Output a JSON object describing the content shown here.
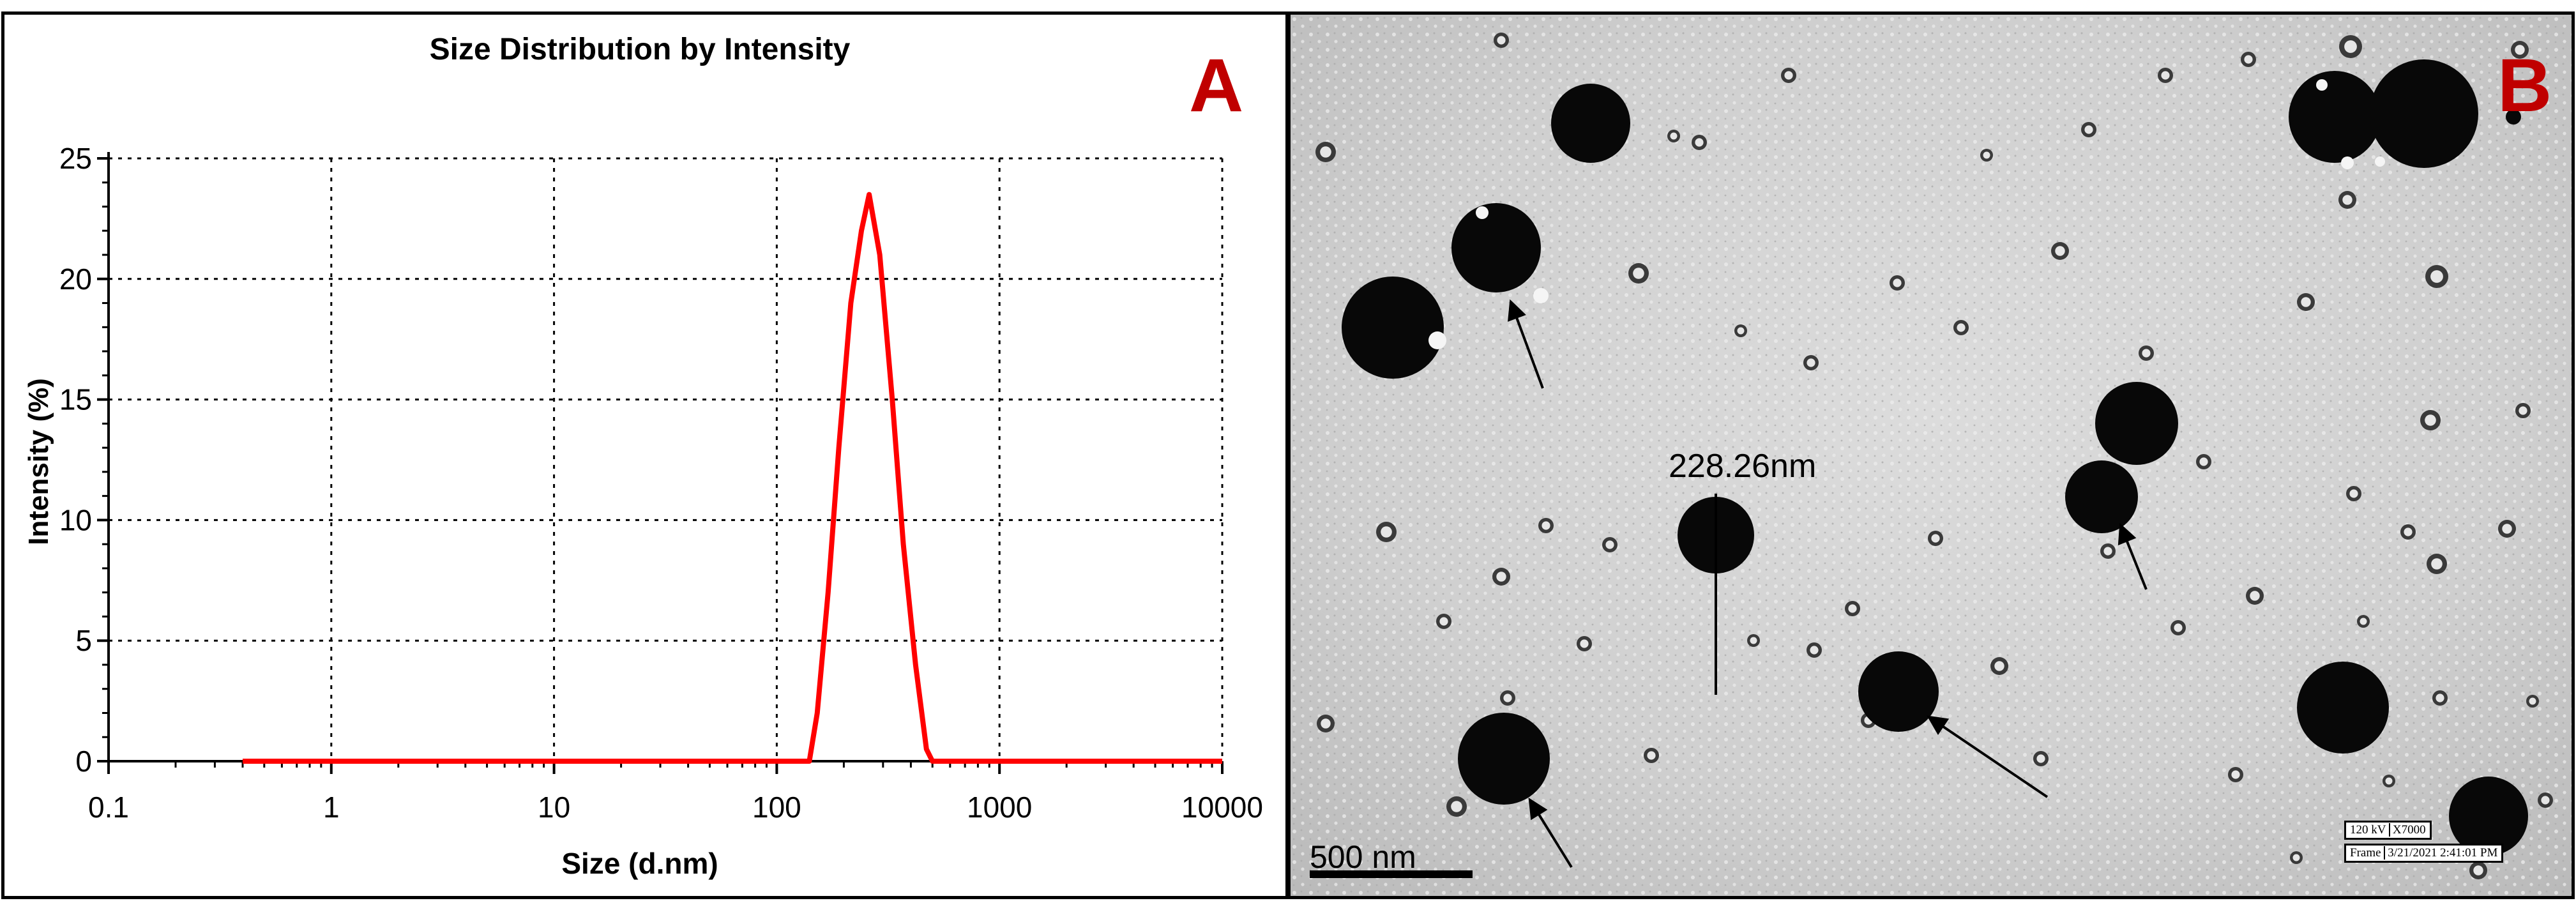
{
  "panel_a": {
    "letter": "A",
    "chart_data": {
      "type": "line",
      "title": "Size Distribution by Intensity",
      "xlabel": "Size (d.nm)",
      "ylabel": "Intensity (%)",
      "x_scale": "log",
      "xlim": [
        0.1,
        10000
      ],
      "ylim": [
        0,
        25
      ],
      "x_ticks": [
        "0.1",
        "1",
        "10",
        "100",
        "1000",
        "10000"
      ],
      "y_ticks": [
        "0",
        "5",
        "10",
        "15",
        "20",
        "25"
      ],
      "grid": true,
      "line_color": "#ff0000",
      "series": [
        {
          "x": [
            0.4,
            1,
            10,
            100,
            140,
            152,
            170,
            190,
            215,
            240,
            260,
            290,
            330,
            370,
            420,
            470,
            500,
            1000,
            10000
          ],
          "values": [
            0,
            0,
            0,
            0,
            0,
            2,
            7,
            13,
            19,
            22,
            23.5,
            21,
            15,
            9,
            4,
            0.5,
            0,
            0,
            0
          ]
        }
      ]
    }
  },
  "panel_b": {
    "letter": "B",
    "measurement_label": "228.26nm",
    "scale_bar_label": "500 nm",
    "info_box": {
      "row1_voltage": "120 kV",
      "row1_magnification": "X7000",
      "row2_label": "Frame",
      "row2_date": "3/21/2021",
      "row2_time": "2:41:01 PM"
    }
  }
}
